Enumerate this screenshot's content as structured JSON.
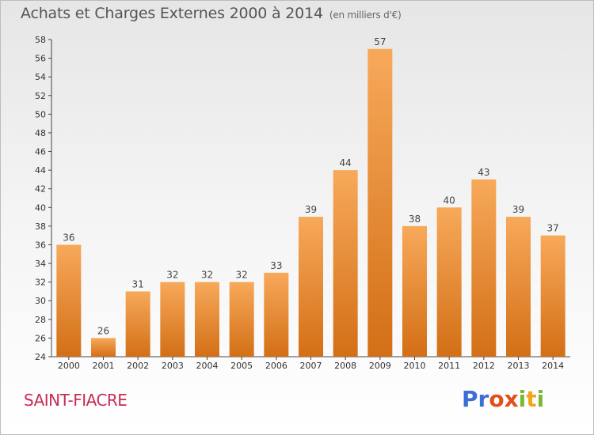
{
  "header": {
    "title": "Achats et Charges Externes 2000 à 2014",
    "unit": "(en milliers d'€)"
  },
  "footer": {
    "commune": "SAINT-FIACRE",
    "logo_letters": [
      "P",
      "r",
      "o",
      "x",
      "i",
      "t",
      "i"
    ]
  },
  "colors": {
    "bar_light": "#f7a95a",
    "bar_dark": "#d36f16",
    "commune_text": "#c72b55",
    "logo": [
      "#3b6fd6",
      "#3b6fd6",
      "#e24f1b",
      "#e24f1b",
      "#79b832",
      "#f2a51a",
      "#79b832"
    ]
  },
  "chart_data": {
    "type": "bar",
    "categories": [
      "2000",
      "2001",
      "2002",
      "2003",
      "2004",
      "2005",
      "2006",
      "2007",
      "2008",
      "2009",
      "2010",
      "2011",
      "2012",
      "2013",
      "2014"
    ],
    "values": [
      36,
      26,
      31,
      32,
      32,
      32,
      33,
      39,
      44,
      57,
      38,
      40,
      43,
      39,
      37
    ],
    "title": "Achats et Charges Externes 2000 à 2014",
    "subtitle": "(en milliers d'€)",
    "xlabel": "",
    "ylabel": "",
    "ylim": [
      24,
      58
    ],
    "yticks": [
      24,
      26,
      28,
      30,
      32,
      34,
      36,
      38,
      40,
      42,
      44,
      46,
      48,
      50,
      52,
      54,
      56,
      58
    ],
    "grid": false,
    "data_labels": true
  }
}
